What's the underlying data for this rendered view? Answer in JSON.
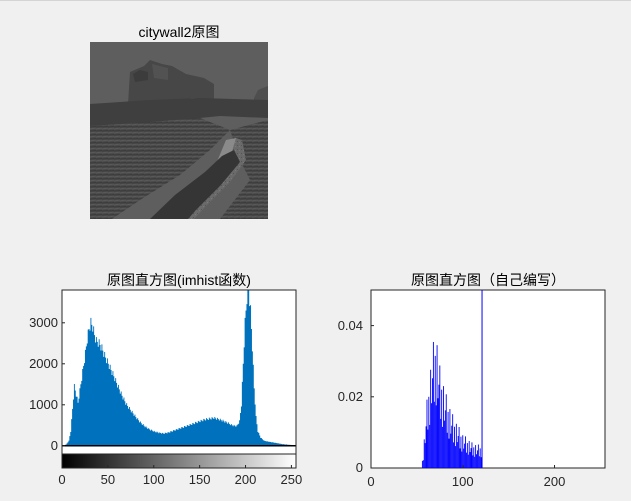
{
  "figure": {
    "image_title": "citywall2原图",
    "hist1_title": "原图直方图(imhist函数)",
    "hist2_title": "原图直方图（自己编写）"
  },
  "chart_data": [
    {
      "type": "bar",
      "title": "原图直方图(imhist函数)",
      "xlabel": "",
      "ylabel": "",
      "xlim": [
        0,
        255
      ],
      "ylim": [
        -200,
        3800
      ],
      "xticks": [
        "0",
        "50",
        "100",
        "150",
        "200",
        "250"
      ],
      "yticks": [
        "0",
        "1000",
        "2000",
        "3000"
      ],
      "color": "#0072bd",
      "colorbar": "grayscale 0-255",
      "profile": [
        [
          0,
          0
        ],
        [
          4,
          30
        ],
        [
          7,
          120
        ],
        [
          9,
          350
        ],
        [
          11,
          900
        ],
        [
          13,
          1450
        ],
        [
          15,
          1250
        ],
        [
          17,
          1050
        ],
        [
          19,
          1350
        ],
        [
          21,
          1650
        ],
        [
          23,
          1950
        ],
        [
          25,
          2250
        ],
        [
          27,
          2600
        ],
        [
          29,
          2850
        ],
        [
          31,
          3000
        ],
        [
          33,
          2900
        ],
        [
          35,
          2700
        ],
        [
          37,
          2550
        ],
        [
          40,
          2500
        ],
        [
          43,
          2380
        ],
        [
          46,
          2200
        ],
        [
          50,
          2000
        ],
        [
          55,
          1750
        ],
        [
          60,
          1480
        ],
        [
          65,
          1220
        ],
        [
          70,
          1000
        ],
        [
          75,
          850
        ],
        [
          80,
          700
        ],
        [
          85,
          570
        ],
        [
          90,
          470
        ],
        [
          95,
          400
        ],
        [
          100,
          350
        ],
        [
          105,
          320
        ],
        [
          110,
          300
        ],
        [
          115,
          320
        ],
        [
          120,
          360
        ],
        [
          125,
          400
        ],
        [
          130,
          440
        ],
        [
          135,
          480
        ],
        [
          140,
          520
        ],
        [
          145,
          560
        ],
        [
          150,
          600
        ],
        [
          155,
          640
        ],
        [
          160,
          660
        ],
        [
          165,
          680
        ],
        [
          170,
          650
        ],
        [
          175,
          610
        ],
        [
          180,
          560
        ],
        [
          185,
          500
        ],
        [
          190,
          480
        ],
        [
          193,
          600
        ],
        [
          195,
          1000
        ],
        [
          197,
          2000
        ],
        [
          199,
          3000
        ],
        [
          201,
          3600
        ],
        [
          203,
          3800
        ],
        [
          205,
          3300
        ],
        [
          207,
          2400
        ],
        [
          209,
          1400
        ],
        [
          211,
          700
        ],
        [
          213,
          350
        ],
        [
          216,
          200
        ],
        [
          220,
          120
        ],
        [
          230,
          80
        ],
        [
          240,
          40
        ],
        [
          250,
          20
        ],
        [
          255,
          0
        ]
      ]
    },
    {
      "type": "bar",
      "title": "原图直方图（自己编写）",
      "xlabel": "",
      "ylabel": "",
      "xlim": [
        0,
        255
      ],
      "ylim": [
        0,
        0.05
      ],
      "xticks": [
        "0",
        "100",
        "200"
      ],
      "yticks": [
        "0",
        "0.02",
        "0.04"
      ],
      "color": "#0000ff",
      "profile": [
        [
          55,
          0
        ],
        [
          57,
          0.004
        ],
        [
          59,
          0.01
        ],
        [
          61,
          0.016
        ],
        [
          63,
          0.02
        ],
        [
          65,
          0.024
        ],
        [
          67,
          0.028
        ],
        [
          69,
          0.031
        ],
        [
          71,
          0.032
        ],
        [
          73,
          0.028
        ],
        [
          75,
          0.024
        ],
        [
          78,
          0.021
        ],
        [
          81,
          0.018
        ],
        [
          85,
          0.015
        ],
        [
          90,
          0.012
        ],
        [
          95,
          0.01
        ],
        [
          100,
          0.008
        ],
        [
          105,
          0.007
        ],
        [
          110,
          0.006
        ],
        [
          115,
          0.0055
        ],
        [
          120,
          0.0055
        ],
        [
          121,
          0.0055
        ]
      ],
      "spike": {
        "x": 121,
        "y": 0.05
      }
    }
  ]
}
